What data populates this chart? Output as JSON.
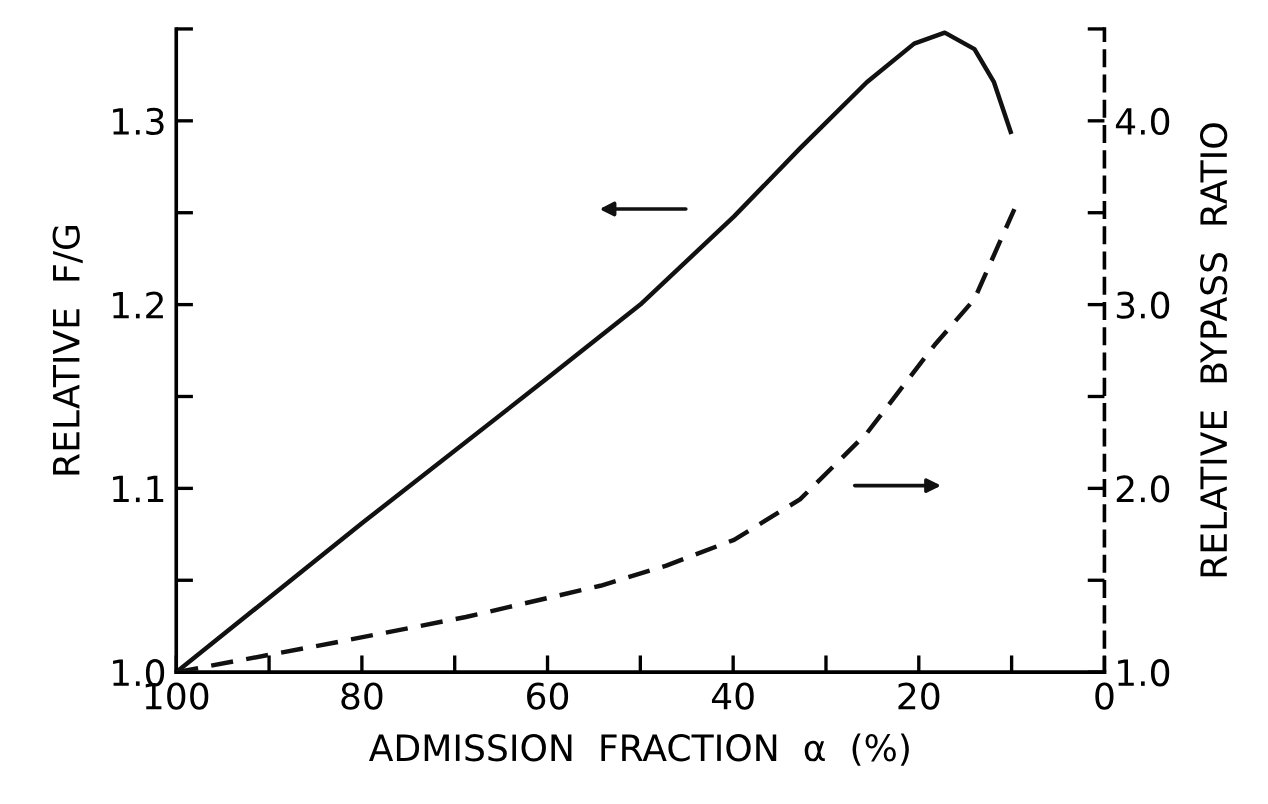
{
  "chart_data": {
    "type": "line",
    "xlabel": "ADMISSION  FRACTION  α  (%)",
    "ylabel": "RELATIVE  F/G",
    "y2label": "RELATIVE  BYPASS  RATIO",
    "xlim": [
      100,
      0
    ],
    "xticks": [
      100,
      {
        "value": 90,
        "label": null
      },
      80,
      {
        "value": 70,
        "label": null
      },
      60,
      {
        "value": 50,
        "label": null
      },
      40,
      {
        "value": 30,
        "label": null
      },
      20,
      {
        "value": 10,
        "label": null
      },
      0
    ],
    "ylim": [
      1.0,
      1.35
    ],
    "yticks": [
      {
        "value": 1.0,
        "label": "1.0"
      },
      {
        "value": 1.05,
        "label": null
      },
      1.1,
      {
        "value": 1.15,
        "label": null
      },
      1.2,
      {
        "value": 1.25,
        "label": null
      },
      1.3,
      {
        "value": 1.35,
        "label": null
      }
    ],
    "y2lim": [
      1.0,
      4.5
    ],
    "y2ticks": [
      {
        "value": 1.0,
        "label": "1.0"
      },
      {
        "value": 1.5,
        "label": null
      },
      {
        "value": 2.0,
        "label": "2.0"
      },
      {
        "value": 2.5,
        "label": null
      },
      {
        "value": 3.0,
        "label": "3.0"
      },
      {
        "value": 3.5,
        "label": null
      },
      {
        "value": 4.0,
        "label": "4.0"
      },
      {
        "value": 4.5,
        "label": null
      }
    ],
    "grid": false,
    "marker": "none",
    "series": [
      {
        "color": "#111111",
        "line_style": "solid",
        "axis": "y",
        "x": [
          100,
          80,
          60,
          50,
          39.9,
          32.8,
          25.6,
          20.5,
          17.2,
          14,
          11.9,
          10.1
        ],
        "values": [
          1.0,
          1.081,
          1.16,
          1.2,
          1.248,
          1.285,
          1.321,
          1.342,
          1.348,
          1.339,
          1.321,
          1.294
        ]
      },
      {
        "color": "#111111",
        "line_style": "dashed",
        "axis": "y2",
        "x": [
          100,
          83,
          68.8,
          54.3,
          47.2,
          39.9,
          32.8,
          25.6,
          18.3,
          14,
          9.7
        ],
        "values": [
          1.0,
          1.16,
          1.3,
          1.47,
          1.58,
          1.72,
          1.94,
          2.3,
          2.78,
          3.03,
          3.52
        ]
      }
    ]
  }
}
